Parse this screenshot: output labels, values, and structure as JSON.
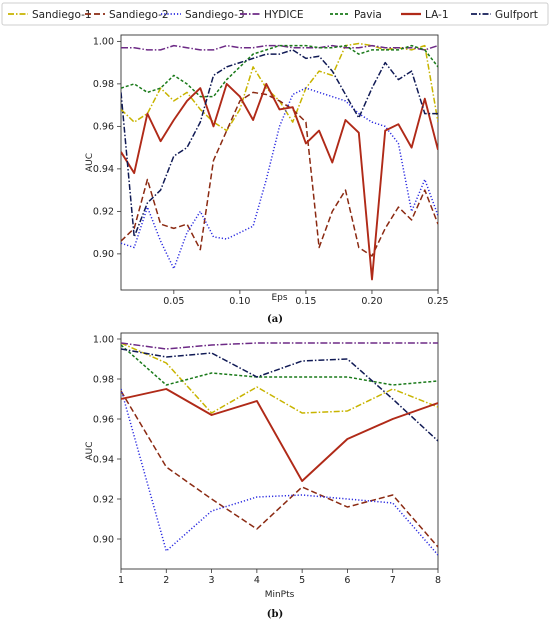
{
  "legend": [
    {
      "name": "Sandiego-1",
      "color": "#c8b400",
      "dash": "6 2 1.5 2"
    },
    {
      "name": "Sandiego-2",
      "color": "#8b2a12",
      "dash": "6 3"
    },
    {
      "name": "Sandiego-3",
      "color": "#2a2ae0",
      "dash": "1.2 2"
    },
    {
      "name": "HYDICE",
      "color": "#6d2a86",
      "dash": "7 2 1.5 2"
    },
    {
      "name": "Pavia",
      "color": "#1a7a1a",
      "dash": "3 2"
    },
    {
      "name": "LA-1",
      "color": "#b02a18",
      "dash": ""
    },
    {
      "name": "Gulfport",
      "color": "#101a55",
      "dash": "6 2 1.5 2"
    }
  ],
  "panels": [
    {
      "label": "(a)"
    },
    {
      "label": "(b)"
    }
  ],
  "chart_data": [
    {
      "type": "line",
      "xlabel": "Eps",
      "ylabel": "AUC",
      "xlim": [
        0.01,
        0.25
      ],
      "ylim": [
        0.883,
        1.003
      ],
      "xticks": [
        0.05,
        0.1,
        0.15,
        0.2,
        0.25
      ],
      "xticklabels": [
        "0.05",
        "0.10",
        "0.15",
        "0.20",
        "0.25"
      ],
      "yticks": [
        0.9,
        0.92,
        0.94,
        0.96,
        0.98,
        1.0
      ],
      "yticklabels": [
        "0.90",
        "0.92",
        "0.94",
        "0.96",
        "0.98",
        "1.00"
      ],
      "x": [
        0.01,
        0.02,
        0.03,
        0.04,
        0.05,
        0.06,
        0.07,
        0.08,
        0.09,
        0.1,
        0.11,
        0.12,
        0.13,
        0.14,
        0.15,
        0.16,
        0.17,
        0.18,
        0.19,
        0.2,
        0.21,
        0.22,
        0.23,
        0.24,
        0.25
      ],
      "series": [
        {
          "name": "Sandiego-1",
          "values": [
            0.968,
            0.962,
            0.966,
            0.978,
            0.972,
            0.976,
            0.968,
            0.962,
            0.958,
            0.968,
            0.988,
            0.978,
            0.972,
            0.962,
            0.978,
            0.986,
            0.984,
            0.998,
            0.999,
            0.998,
            0.996,
            0.997,
            0.996,
            0.998,
            0.962
          ]
        },
        {
          "name": "Sandiego-2",
          "values": [
            0.906,
            0.912,
            0.935,
            0.914,
            0.912,
            0.914,
            0.902,
            0.944,
            0.958,
            0.972,
            0.976,
            0.975,
            0.972,
            0.968,
            0.962,
            0.903,
            0.92,
            0.93,
            0.903,
            0.899,
            0.912,
            0.922,
            0.916,
            0.93,
            0.914
          ]
        },
        {
          "name": "Sandiego-3",
          "values": [
            0.905,
            0.903,
            0.922,
            0.906,
            0.893,
            0.91,
            0.92,
            0.908,
            0.907,
            0.91,
            0.913,
            0.935,
            0.96,
            0.975,
            0.978,
            0.976,
            0.974,
            0.972,
            0.966,
            0.962,
            0.96,
            0.952,
            0.92,
            0.935,
            0.918
          ]
        },
        {
          "name": "HYDICE",
          "values": [
            0.997,
            0.997,
            0.996,
            0.996,
            0.998,
            0.997,
            0.996,
            0.996,
            0.998,
            0.997,
            0.997,
            0.998,
            0.998,
            0.997,
            0.997,
            0.997,
            0.998,
            0.997,
            0.997,
            0.998,
            0.997,
            0.997,
            0.997,
            0.996,
            0.998
          ]
        },
        {
          "name": "Pavia",
          "values": [
            0.978,
            0.98,
            0.976,
            0.978,
            0.984,
            0.98,
            0.974,
            0.974,
            0.982,
            0.988,
            0.994,
            0.996,
            0.998,
            0.998,
            0.998,
            0.997,
            0.997,
            0.998,
            0.994,
            0.996,
            0.996,
            0.996,
            0.998,
            0.996,
            0.988
          ]
        },
        {
          "name": "LA-1",
          "values": [
            0.948,
            0.938,
            0.966,
            0.953,
            0.963,
            0.972,
            0.978,
            0.96,
            0.98,
            0.974,
            0.963,
            0.98,
            0.968,
            0.969,
            0.952,
            0.958,
            0.943,
            0.963,
            0.957,
            0.888,
            0.958,
            0.961,
            0.95,
            0.973,
            0.949
          ]
        },
        {
          "name": "Gulfport",
          "values": [
            0.976,
            0.908,
            0.924,
            0.93,
            0.946,
            0.95,
            0.962,
            0.984,
            0.988,
            0.99,
            0.992,
            0.994,
            0.994,
            0.996,
            0.992,
            0.993,
            0.986,
            0.975,
            0.964,
            0.978,
            0.99,
            0.982,
            0.986,
            0.966,
            0.966
          ]
        }
      ]
    },
    {
      "type": "line",
      "xlabel": "MinPts",
      "ylabel": "AUC",
      "xlim": [
        1,
        8
      ],
      "ylim": [
        0.885,
        1.003
      ],
      "xticks": [
        1,
        2,
        3,
        4,
        5,
        6,
        7,
        8
      ],
      "xticklabels": [
        "1",
        "2",
        "3",
        "4",
        "5",
        "6",
        "7",
        "8"
      ],
      "yticks": [
        0.9,
        0.92,
        0.94,
        0.96,
        0.98,
        1.0
      ],
      "yticklabels": [
        "0.90",
        "0.92",
        "0.94",
        "0.96",
        "0.98",
        "1.00"
      ],
      "x": [
        1,
        2,
        3,
        4,
        5,
        6,
        7,
        8
      ],
      "series": [
        {
          "name": "Sandiego-1",
          "values": [
            0.998,
            0.988,
            0.963,
            0.976,
            0.963,
            0.964,
            0.975,
            0.966
          ]
        },
        {
          "name": "Sandiego-2",
          "values": [
            0.974,
            0.936,
            0.92,
            0.905,
            0.926,
            0.916,
            0.922,
            0.896
          ]
        },
        {
          "name": "Sandiego-3",
          "values": [
            0.975,
            0.894,
            0.914,
            0.921,
            0.922,
            0.92,
            0.918,
            0.892
          ]
        },
        {
          "name": "HYDICE",
          "values": [
            0.998,
            0.995,
            0.997,
            0.998,
            0.998,
            0.998,
            0.998,
            0.998
          ]
        },
        {
          "name": "Pavia",
          "values": [
            0.997,
            0.977,
            0.983,
            0.981,
            0.981,
            0.981,
            0.977,
            0.979
          ]
        },
        {
          "name": "LA-1",
          "values": [
            0.97,
            0.975,
            0.962,
            0.969,
            0.929,
            0.95,
            0.96,
            0.968
          ]
        },
        {
          "name": "Gulfport",
          "values": [
            0.995,
            0.991,
            0.993,
            0.981,
            0.989,
            0.99,
            0.97,
            0.949
          ]
        }
      ]
    }
  ]
}
